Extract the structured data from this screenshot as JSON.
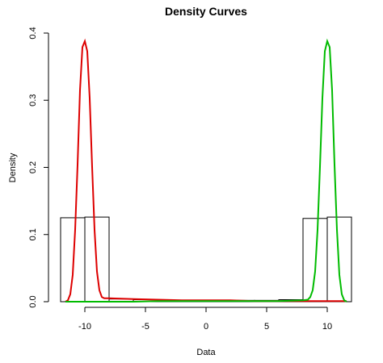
{
  "chart_data": {
    "type": "line",
    "title": "Density Curves",
    "xlabel": "Data",
    "ylabel": "Density",
    "xlim": [
      -12,
      12
    ],
    "ylim": [
      0,
      0.4
    ],
    "x_ticks": [
      -10,
      -5,
      0,
      5,
      10
    ],
    "y_ticks": [
      0.0,
      0.1,
      0.2,
      0.3,
      0.4
    ],
    "x_tick_labels": [
      "-10",
      "-5",
      "0",
      "5",
      "10"
    ],
    "y_tick_labels": [
      "0.0",
      "0.1",
      "0.2",
      "0.3",
      "0.4"
    ],
    "grid": false,
    "histogram": {
      "bins": [
        {
          "x0": -12,
          "x1": -10,
          "density": 0.125
        },
        {
          "x0": -10,
          "x1": -8,
          "density": 0.126
        },
        {
          "x0": -8,
          "x1": -6,
          "density": 0.004
        },
        {
          "x0": -6,
          "x1": -4,
          "density": 0.003
        },
        {
          "x0": -4,
          "x1": -2,
          "density": 0.002
        },
        {
          "x0": -2,
          "x1": 0,
          "density": 0.002
        },
        {
          "x0": 0,
          "x1": 2,
          "density": 0.002
        },
        {
          "x0": 2,
          "x1": 4,
          "density": 0.002
        },
        {
          "x0": 4,
          "x1": 6,
          "density": 0.002
        },
        {
          "x0": 6,
          "x1": 8,
          "density": 0.003
        },
        {
          "x0": 8,
          "x1": 10,
          "density": 0.124
        },
        {
          "x0": 10,
          "x1": 12,
          "density": 0.126
        }
      ]
    },
    "series": [
      {
        "color": "#dd0000",
        "points": [
          [
            -11.6,
            0.0
          ],
          [
            -11.4,
            0.002
          ],
          [
            -11.2,
            0.011
          ],
          [
            -11.0,
            0.04
          ],
          [
            -10.8,
            0.107
          ],
          [
            -10.6,
            0.204
          ],
          [
            -10.4,
            0.315
          ],
          [
            -10.2,
            0.379
          ],
          [
            -10.0,
            0.388
          ],
          [
            -9.8,
            0.373
          ],
          [
            -9.6,
            0.303
          ],
          [
            -9.4,
            0.201
          ],
          [
            -9.2,
            0.107
          ],
          [
            -9.0,
            0.045
          ],
          [
            -8.8,
            0.017
          ],
          [
            -8.6,
            0.007
          ],
          [
            -8.4,
            0.005
          ],
          [
            -8.0,
            0.005
          ],
          [
            -6.0,
            0.004
          ],
          [
            -4.0,
            0.003
          ],
          [
            -2.0,
            0.002
          ],
          [
            0.0,
            0.002
          ],
          [
            2.0,
            0.002
          ],
          [
            4.0,
            0.001
          ],
          [
            6.0,
            0.001
          ],
          [
            8.0,
            0.001
          ],
          [
            10.0,
            0.001
          ],
          [
            11.6,
            0.001
          ]
        ]
      },
      {
        "color": "#00bb00",
        "points": [
          [
            -11.6,
            0.0
          ],
          [
            -8.0,
            0.0
          ],
          [
            -6.0,
            0.0
          ],
          [
            -4.0,
            0.001
          ],
          [
            -2.0,
            0.001
          ],
          [
            0.0,
            0.001
          ],
          [
            2.0,
            0.001
          ],
          [
            4.0,
            0.001
          ],
          [
            6.0,
            0.001
          ],
          [
            8.0,
            0.002
          ],
          [
            8.4,
            0.003
          ],
          [
            8.6,
            0.007
          ],
          [
            8.8,
            0.017
          ],
          [
            9.0,
            0.045
          ],
          [
            9.2,
            0.107
          ],
          [
            9.4,
            0.201
          ],
          [
            9.6,
            0.303
          ],
          [
            9.8,
            0.373
          ],
          [
            10.0,
            0.388
          ],
          [
            10.2,
            0.379
          ],
          [
            10.4,
            0.315
          ],
          [
            10.6,
            0.204
          ],
          [
            10.8,
            0.107
          ],
          [
            11.0,
            0.04
          ],
          [
            11.2,
            0.011
          ],
          [
            11.4,
            0.002
          ],
          [
            11.6,
            0.0
          ]
        ]
      }
    ]
  }
}
